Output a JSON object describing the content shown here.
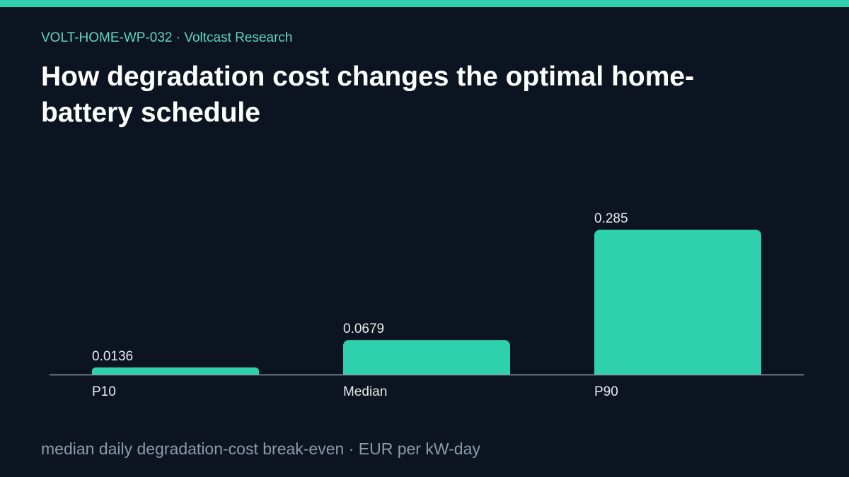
{
  "header": {
    "kicker": "VOLT-HOME-WP-032 · Voltcast Research",
    "title": "How degradation cost changes the optimal home-battery schedule"
  },
  "footer": {
    "caption": "median daily degradation-cost break-even · EUR per kW-day"
  },
  "colors": {
    "accent": "#2fd0ad",
    "background": "#0b1420",
    "title": "#ffffff",
    "kicker": "#5fd9bd",
    "caption": "#8d9aab",
    "axis": "#8d99a8",
    "label": "#e6ebf0"
  },
  "chart_data": {
    "type": "bar",
    "categories": [
      "P10",
      "Median",
      "P90"
    ],
    "values": [
      0.0136,
      0.0679,
      0.285
    ],
    "value_labels": [
      "0.0136",
      "0.0679",
      "0.285"
    ],
    "title": "",
    "xlabel": "",
    "ylabel": "",
    "ylim": [
      0,
      0.285
    ],
    "grid": false,
    "legend": "none"
  }
}
